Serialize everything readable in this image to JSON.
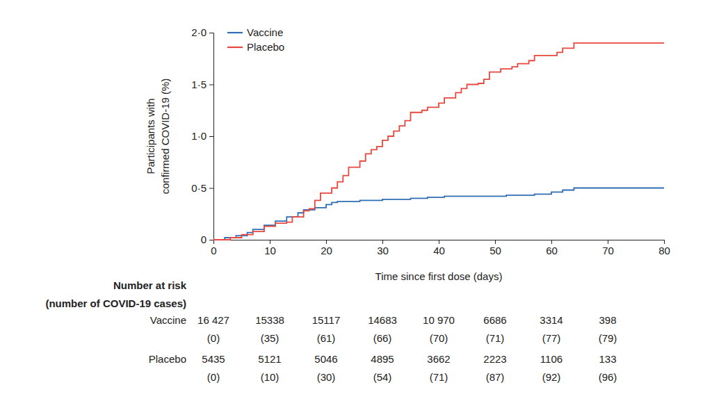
{
  "chart_data": {
    "type": "line",
    "xlabel": "Time since first dose (days)",
    "ylabel": [
      "Participants with",
      "confirmed COVID-19 (%)"
    ],
    "xlim": [
      0,
      80
    ],
    "ylim": [
      0,
      2.0
    ],
    "xticks": [
      0,
      10,
      20,
      30,
      40,
      50,
      60,
      70,
      80
    ],
    "yticks": [
      0,
      {
        "value": 0.5,
        "label": "0·5"
      },
      {
        "value": 1.0,
        "label": "1·0"
      },
      {
        "value": 1.5,
        "label": "1·5"
      },
      {
        "value": 2.0,
        "label": "2·0"
      }
    ],
    "grid": false,
    "legend": "upper left",
    "series": [
      {
        "name": "Vaccine",
        "color": "#2f6db5",
        "line_style": "step",
        "x": [
          0,
          2,
          4,
          6,
          7,
          9,
          11,
          13,
          15,
          16,
          18,
          20,
          21,
          22,
          26,
          30,
          35,
          38,
          41,
          50,
          52,
          57,
          60,
          62,
          64,
          80
        ],
        "values": [
          0,
          0.02,
          0.04,
          0.07,
          0.1,
          0.14,
          0.18,
          0.22,
          0.26,
          0.29,
          0.31,
          0.34,
          0.36,
          0.37,
          0.38,
          0.39,
          0.4,
          0.41,
          0.42,
          0.42,
          0.43,
          0.44,
          0.46,
          0.48,
          0.5,
          0.5
        ]
      },
      {
        "name": "Placebo",
        "color": "#e8473d",
        "line_style": "step",
        "x": [
          0,
          3,
          5,
          7,
          9,
          11,
          13,
          14,
          16,
          17,
          18,
          19,
          21,
          22,
          23,
          24,
          26,
          27,
          28,
          29,
          30,
          31,
          32,
          33,
          34,
          35,
          37,
          38,
          40,
          41,
          43,
          44,
          45,
          47,
          48,
          49,
          51,
          53,
          54,
          56,
          57,
          61,
          62,
          64,
          80
        ],
        "values": [
          0,
          0.02,
          0.05,
          0.08,
          0.13,
          0.16,
          0.17,
          0.22,
          0.28,
          0.3,
          0.38,
          0.45,
          0.5,
          0.56,
          0.62,
          0.7,
          0.76,
          0.83,
          0.87,
          0.9,
          0.96,
          1.0,
          1.05,
          1.1,
          1.15,
          1.23,
          1.25,
          1.28,
          1.32,
          1.37,
          1.42,
          1.46,
          1.5,
          1.51,
          1.55,
          1.62,
          1.65,
          1.67,
          1.7,
          1.73,
          1.78,
          1.81,
          1.85,
          1.9,
          1.9
        ]
      }
    ],
    "risk_table": {
      "title": [
        "Number at risk",
        "(number of COVID-19 cases)"
      ],
      "x": [
        0,
        10,
        20,
        30,
        40,
        50,
        60,
        70
      ],
      "rows": [
        {
          "name": "Vaccine",
          "values": [
            16427,
            15338,
            15117,
            14683,
            10970,
            6686,
            3314,
            398
          ],
          "value_labels": [
            "16 427",
            "15338",
            "15117",
            "14683",
            "10 970",
            "6686",
            "3314",
            "398"
          ],
          "cases": [
            0,
            35,
            61,
            66,
            70,
            71,
            77,
            79
          ],
          "case_labels": [
            "(0)",
            "(35)",
            "(61)",
            "(66)",
            "(70)",
            "(71)",
            "(77)",
            "(79)"
          ]
        },
        {
          "name": "Placebo",
          "values": [
            5435,
            5121,
            5046,
            4895,
            3662,
            2223,
            1106,
            133
          ],
          "value_labels": [
            "5435",
            "5121",
            "5046",
            "4895",
            "3662",
            "2223",
            "1106",
            "133"
          ],
          "cases": [
            0,
            10,
            30,
            54,
            71,
            87,
            92,
            96
          ],
          "case_labels": [
            "(0)",
            "(10)",
            "(30)",
            "(54)",
            "(71)",
            "(87)",
            "(92)",
            "(96)"
          ]
        }
      ]
    }
  }
}
